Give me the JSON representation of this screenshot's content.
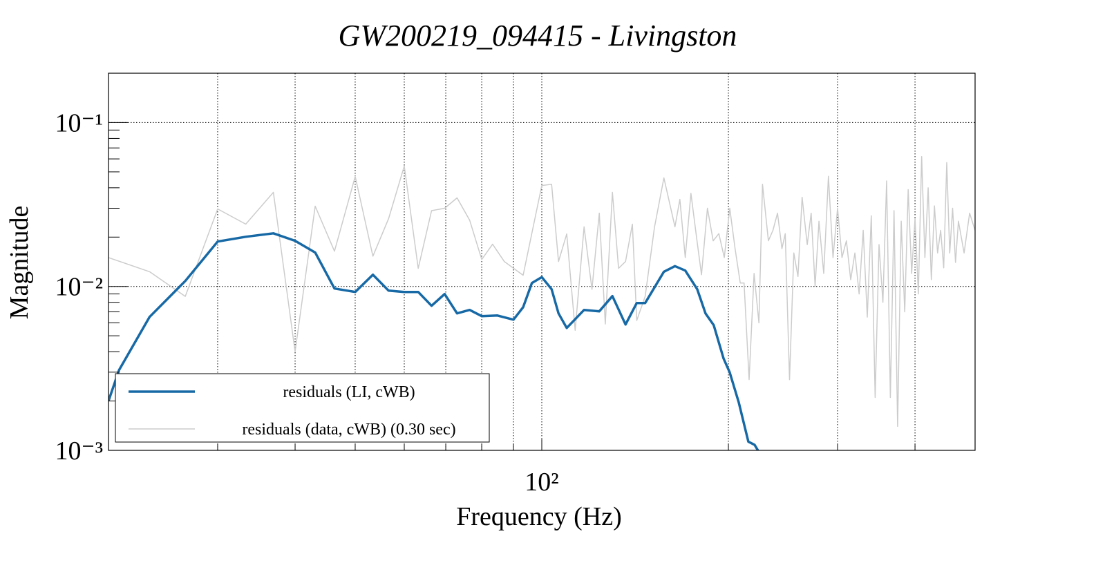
{
  "chart_data": {
    "type": "line",
    "title": "GW200219_094415 - Livingston",
    "xlabel": "Frequency (Hz)",
    "ylabel": "Magnitude",
    "xscale": "log",
    "yscale": "log",
    "xlim": [
      20,
      500
    ],
    "ylim": [
      0.001,
      0.2
    ],
    "xticks": [
      {
        "value": 100,
        "label": "10²"
      }
    ],
    "xminor_ticks": [
      30,
      40,
      50,
      60,
      70,
      80,
      90,
      200,
      300,
      400
    ],
    "yticks": [
      {
        "value": 0.001,
        "label": "10⁻³"
      },
      {
        "value": 0.01,
        "label": "10⁻²"
      },
      {
        "value": 0.1,
        "label": "10⁻¹"
      }
    ],
    "yminor_ticks": [
      0.002,
      0.003,
      0.004,
      0.005,
      0.006,
      0.007,
      0.008,
      0.009,
      0.02,
      0.03,
      0.04,
      0.05,
      0.06,
      0.07,
      0.08,
      0.09,
      0.2
    ],
    "grid": true,
    "legend": "lower left",
    "series": [
      {
        "name": "residuals (LI, cWB)",
        "color": "#1769a6",
        "width": 3.5,
        "x": [
          20,
          20.8,
          23.3,
          26.6,
          30,
          33.3,
          36.9,
          40,
          43.1,
          46.3,
          50,
          53.4,
          56.6,
          60,
          63.2,
          66.4,
          69.7,
          73.0,
          76.5,
          80,
          84.8,
          90,
          93.3,
          96.4,
          100,
          103.7,
          106.4,
          109.7,
          117.0,
          123.8,
          130.0,
          136.5,
          142.3,
          146.8,
          157.4,
          164.0,
          170.4,
          178.1,
          183.7,
          189.4,
          196.4,
          200.9,
          207.8,
          215.4,
          220.5,
          223.9
        ],
        "values": [
          0.002,
          0.00309,
          0.00652,
          0.0108,
          0.0188,
          0.0201,
          0.0211,
          0.019,
          0.0161,
          0.00971,
          0.00925,
          0.0118,
          0.00943,
          0.00925,
          0.00925,
          0.00762,
          0.00899,
          0.00685,
          0.00719,
          0.00659,
          0.00665,
          0.00627,
          0.00747,
          0.0105,
          0.0114,
          0.00962,
          0.00685,
          0.00558,
          0.00719,
          0.00705,
          0.00873,
          0.00586,
          0.00792,
          0.00792,
          0.0123,
          0.0133,
          0.0125,
          0.00962,
          0.00685,
          0.0058,
          0.00364,
          0.003,
          0.00197,
          0.00113,
          0.00108,
          0.00098
        ]
      },
      {
        "name": "residuals (data, cWB) (0.30 sec)",
        "color": "#cccccc",
        "width": 1.5,
        "x": [
          20,
          23.3,
          26.6,
          30,
          33.3,
          36.9,
          40,
          43.1,
          46.3,
          50,
          53.4,
          56.6,
          60,
          63.2,
          66.4,
          69.7,
          73.0,
          76.5,
          80,
          83.3,
          87.0,
          93.3,
          100,
          103.7,
          106.4,
          109.7,
          113.2,
          117,
          120.5,
          123.8,
          126.6,
          130,
          133,
          136.5,
          140,
          142.3,
          146.8,
          152,
          157.4,
          164,
          167,
          170.4,
          174,
          178,
          181,
          185,
          189,
          193,
          197,
          201,
          205,
          209,
          212,
          216,
          220,
          224,
          227,
          232,
          236,
          240,
          244,
          247,
          251,
          255,
          259,
          263,
          268,
          272,
          276,
          280,
          285,
          290,
          295,
          300,
          305,
          310,
          315,
          320,
          325,
          330,
          335,
          340,
          345,
          350,
          355,
          360,
          365,
          370,
          375,
          380,
          385,
          390,
          395,
          400,
          405,
          410,
          415,
          420,
          425,
          430,
          435,
          440,
          445,
          450,
          455,
          460,
          465,
          470,
          480,
          490,
          500
        ],
        "values": [
          0.015,
          0.0123,
          0.0087,
          0.0297,
          0.024,
          0.0375,
          0.004,
          0.0309,
          0.0164,
          0.0469,
          0.0153,
          0.0259,
          0.0543,
          0.0129,
          0.029,
          0.03,
          0.0347,
          0.0254,
          0.0146,
          0.0181,
          0.0142,
          0.0117,
          0.0413,
          0.042,
          0.0142,
          0.0209,
          0.0054,
          0.0231,
          0.0096,
          0.028,
          0.0059,
          0.0375,
          0.0129,
          0.0142,
          0.024,
          0.0062,
          0.0087,
          0.023,
          0.046,
          0.0231,
          0.034,
          0.015,
          0.037,
          0.019,
          0.0118,
          0.03,
          0.019,
          0.021,
          0.015,
          0.03,
          0.017,
          0.0105,
          0.0105,
          0.0027,
          0.012,
          0.006,
          0.042,
          0.019,
          0.022,
          0.028,
          0.017,
          0.021,
          0.0027,
          0.016,
          0.0115,
          0.035,
          0.018,
          0.028,
          0.01,
          0.025,
          0.012,
          0.047,
          0.015,
          0.03,
          0.015,
          0.019,
          0.011,
          0.016,
          0.009,
          0.022,
          0.0065,
          0.027,
          0.0021,
          0.018,
          0.008,
          0.044,
          0.0021,
          0.029,
          0.0014,
          0.025,
          0.007,
          0.039,
          0.012,
          0.026,
          0.009,
          0.062,
          0.015,
          0.04,
          0.011,
          0.031,
          0.016,
          0.022,
          0.013,
          0.057,
          0.016,
          0.03,
          0.014,
          0.025,
          0.016,
          0.028,
          0.022
        ]
      }
    ]
  }
}
